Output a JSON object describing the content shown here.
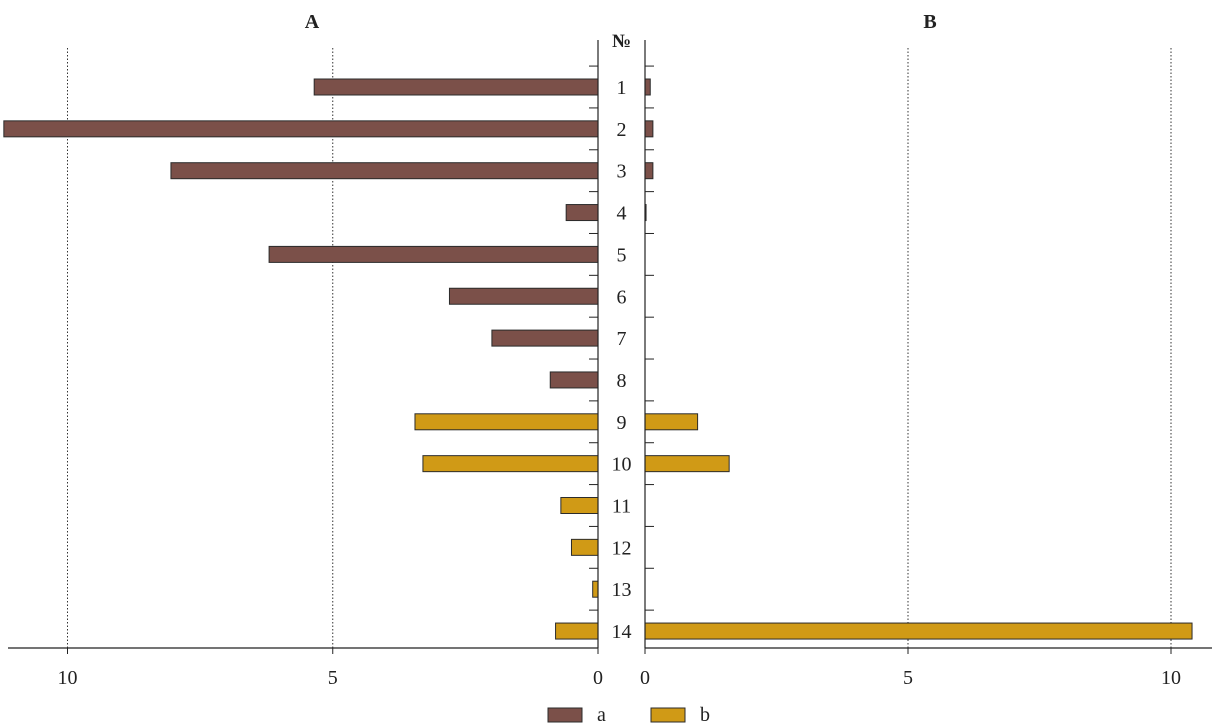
{
  "chart_data": {
    "type": "bar",
    "orientation": "horizontal",
    "layout": "butterfly",
    "row_header": "№",
    "categories": [
      "1",
      "2",
      "3",
      "4",
      "5",
      "6",
      "7",
      "8",
      "9",
      "10",
      "11",
      "12",
      "13",
      "14"
    ],
    "group_of_row": [
      "a",
      "a",
      "a",
      "a",
      "a",
      "a",
      "a",
      "a",
      "b",
      "b",
      "b",
      "b",
      "b",
      "b"
    ],
    "panels": [
      {
        "title": "A",
        "direction": "left",
        "xlim": [
          0,
          11
        ],
        "ticks": [
          "0",
          "5",
          "10"
        ],
        "values": [
          5.35,
          11.2,
          8.05,
          0.6,
          6.2,
          2.8,
          2.0,
          0.9,
          3.45,
          3.3,
          0.7,
          0.5,
          0.1,
          0.8
        ]
      },
      {
        "title": "B",
        "direction": "right",
        "xlim": [
          0,
          10.5
        ],
        "ticks": [
          "0",
          "5",
          "10"
        ],
        "values": [
          0.1,
          0.15,
          0.15,
          0.02,
          0,
          0,
          0,
          0,
          1.0,
          1.6,
          0,
          0,
          0,
          10.4
        ]
      }
    ],
    "grid": "vertical dotted at 5 and 10",
    "legend": {
      "placement": "bottom-center",
      "items": [
        {
          "label": "a",
          "color": "#7B5049"
        },
        {
          "label": "b",
          "color": "#D09A16"
        }
      ]
    }
  }
}
